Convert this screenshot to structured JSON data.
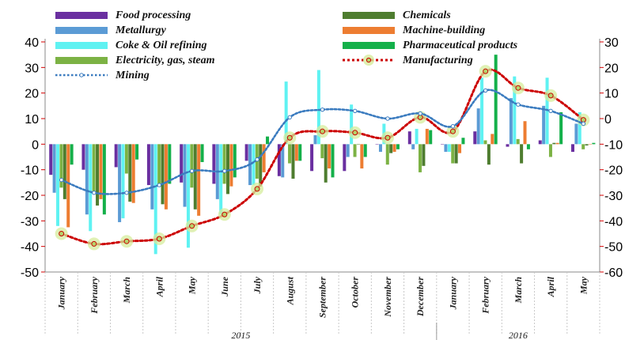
{
  "chart_data": {
    "type": "bar",
    "title": "",
    "categories": [
      "January",
      "February",
      "March",
      "April",
      "May",
      "June",
      "July",
      "August",
      "September",
      "October",
      "November",
      "December",
      "January",
      "February",
      "March",
      "April",
      "May"
    ],
    "year_labels": [
      {
        "label": "2015",
        "from": 0,
        "to": 11
      },
      {
        "label": "2016",
        "from": 12,
        "to": 16
      }
    ],
    "left_axis": {
      "ylim": [
        -50,
        40
      ],
      "ticks": [
        "-50",
        "-40",
        "-30",
        "-20",
        "-10",
        "0",
        "10",
        "20",
        "30",
        "40"
      ],
      "tick_values": [
        -50,
        -40,
        -30,
        -20,
        -10,
        0,
        10,
        20,
        30,
        40
      ],
      "tick_color": "#d40000"
    },
    "right_axis": {
      "ylim": [
        -60,
        30
      ],
      "ticks": [
        "-60",
        "-50",
        "-40",
        "-30",
        "-20",
        "-10",
        "0",
        "10",
        "20",
        "30"
      ],
      "tick_values": [
        -60,
        -50,
        -40,
        -30,
        -20,
        -10,
        0,
        10,
        20,
        30
      ],
      "tick_color": "#d40000"
    },
    "series": [
      {
        "name": "Food processing",
        "kind": "bar",
        "color": "#6a2fa0",
        "values": [
          -12,
          -10,
          -9,
          -16,
          -15,
          -15.5,
          -6.5,
          -12.5,
          -10.5,
          -10.5,
          0,
          5,
          0,
          5,
          -1,
          1.5,
          -3
        ]
      },
      {
        "name": "Metallurgy",
        "kind": "bar",
        "color": "#5b9bd5",
        "values": [
          -19,
          -27.5,
          -30.5,
          -25.5,
          -24.5,
          -21.5,
          -16,
          -13,
          3.5,
          -5,
          -3,
          -2,
          -3,
          14,
          18,
          15,
          8
        ]
      },
      {
        "name": "Coke & Oil refining",
        "kind": "bar",
        "color": "#5ff2f2",
        "values": [
          -32,
          -34,
          -29,
          -43,
          -40.5,
          -27.5,
          -16,
          24.5,
          29,
          15.5,
          8,
          6,
          -3,
          26,
          26.5,
          26,
          12.5
        ]
      },
      {
        "name": "Electricity, gas, steam",
        "kind": "bar",
        "color": "#7cb244",
        "values": [
          -17,
          -19,
          -11.5,
          -16,
          -17,
          -15.5,
          -13.5,
          -7.5,
          -5.5,
          -5,
          -8,
          -11,
          -7.5,
          1.5,
          2,
          -5,
          -2
        ]
      },
      {
        "name": "Chemicals",
        "kind": "bar",
        "color": "#4e7d2f",
        "values": [
          -21.5,
          -24,
          -22.5,
          -23.5,
          -25.5,
          -19.5,
          -16.5,
          -13.5,
          -15,
          0,
          -3.5,
          -8.5,
          -7.5,
          -8,
          -7.5,
          0.5,
          -0.5
        ]
      },
      {
        "name": "Machine-building",
        "kind": "bar",
        "color": "#ed7d31",
        "values": [
          -32.5,
          -21.5,
          -23,
          -25.5,
          -28,
          -16.5,
          -11,
          -6.5,
          -9.5,
          -9.5,
          -3,
          6,
          -3.5,
          4,
          9,
          0.5,
          0
        ]
      },
      {
        "name": "Pharmaceutical products",
        "kind": "bar",
        "color": "#14b04a",
        "values": [
          -8,
          -27.5,
          -6,
          -15.5,
          -7,
          -13,
          3,
          -6.5,
          -13,
          -5,
          -2,
          5.5,
          2.5,
          35,
          -2,
          12.5,
          0.5
        ]
      },
      {
        "name": "Manufacturing",
        "kind": "line",
        "axis": "right",
        "color": "#cc0000",
        "values": [
          -45,
          -49,
          -48,
          -47,
          -42,
          -37.5,
          -27.5,
          -7.5,
          -5,
          -5.5,
          -7.5,
          0.5,
          -5,
          18.5,
          12,
          9,
          -0.5
        ]
      },
      {
        "name": "Mining",
        "kind": "line",
        "axis": "right",
        "color": "#3a7bbf",
        "values": [
          -24,
          -29,
          -29,
          -26,
          -20.5,
          -20.5,
          -16,
          0.5,
          3.5,
          3,
          0,
          2,
          -3,
          11,
          5.5,
          3,
          -2
        ]
      }
    ],
    "legend_placement": "top",
    "grid": false
  }
}
